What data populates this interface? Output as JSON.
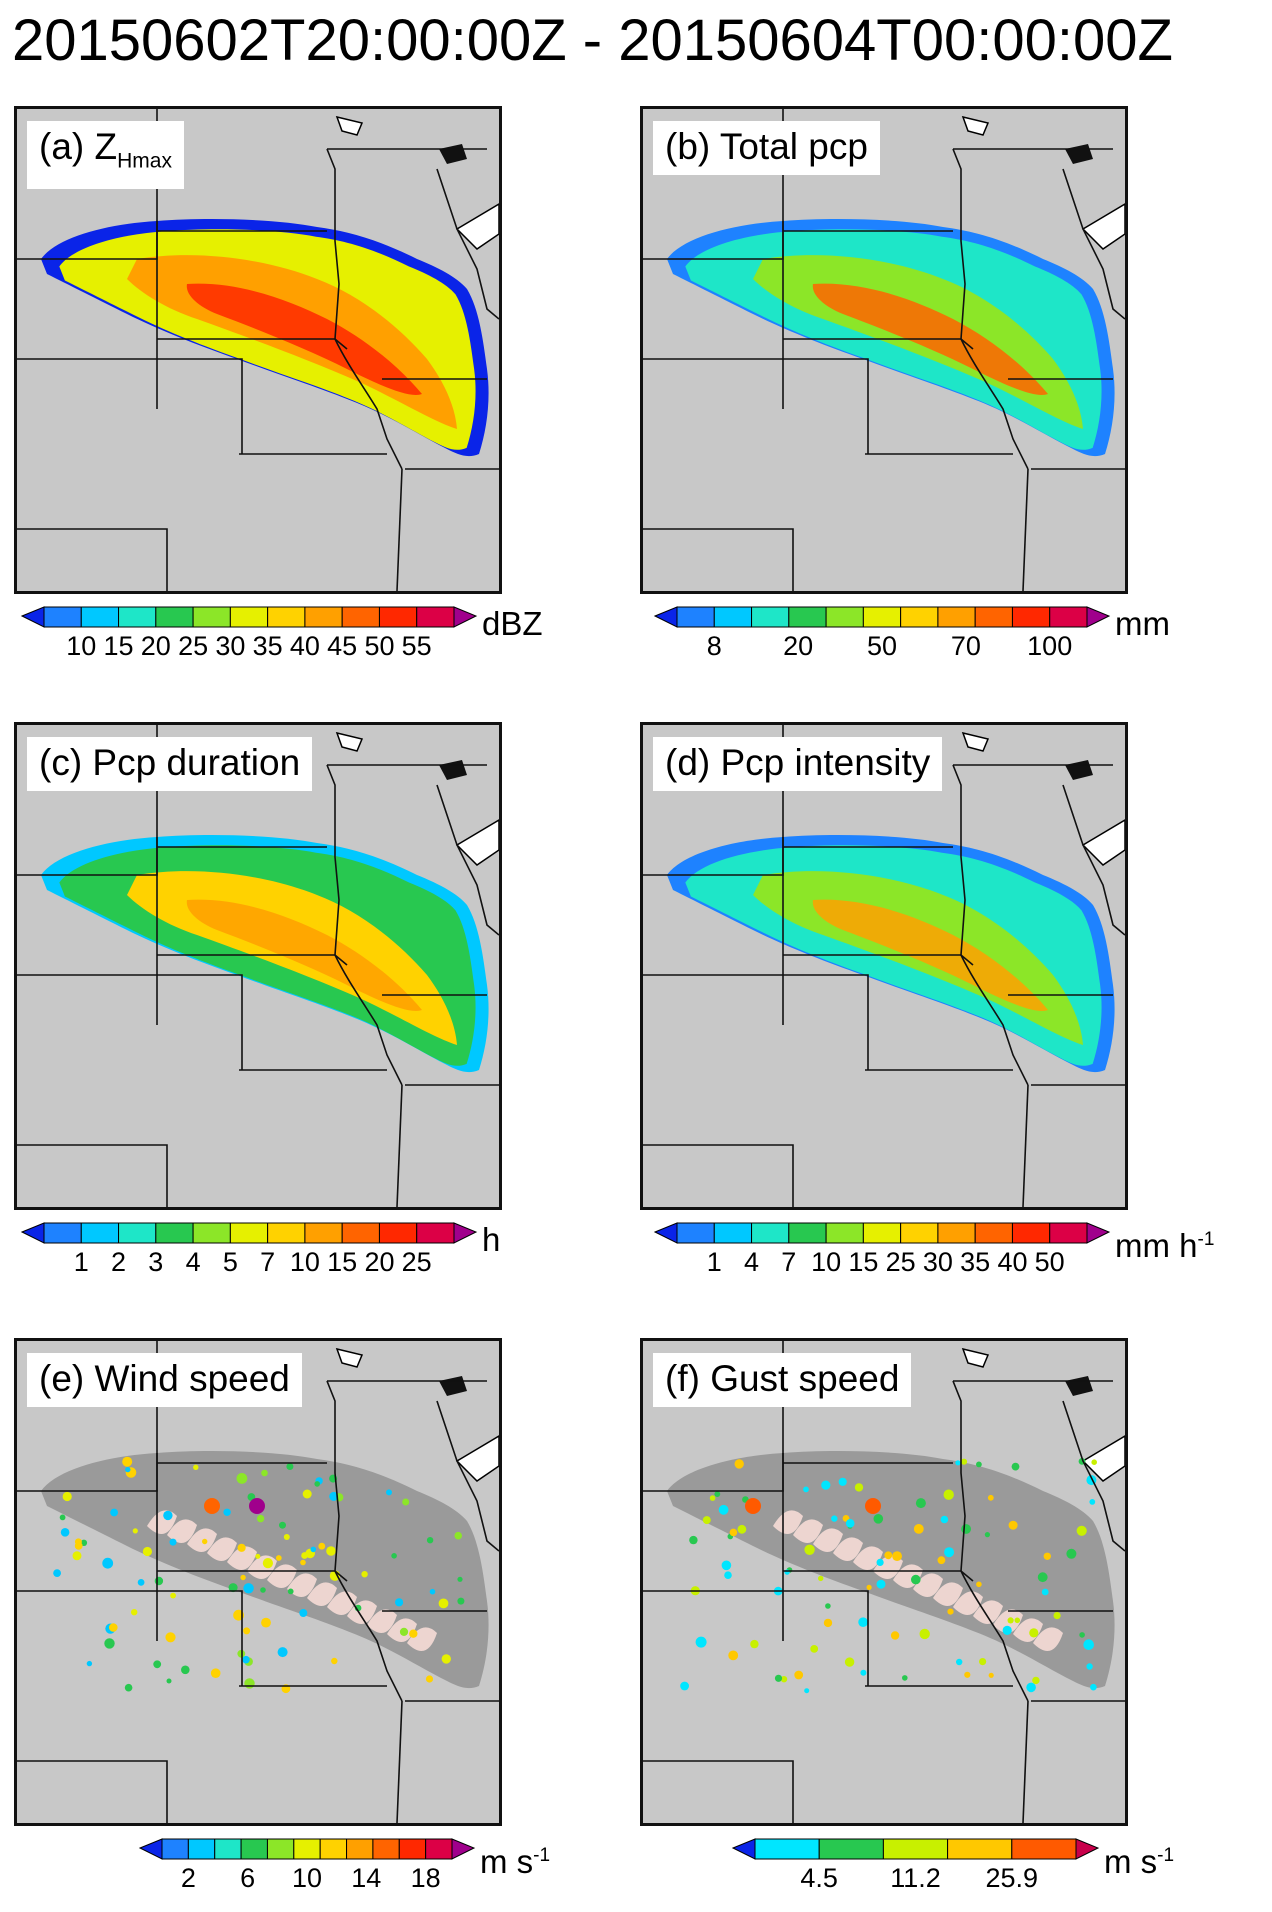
{
  "title": "20150602T20:00:00Z - 20150604T00:00:00Z",
  "colors": {
    "background_map": "#c8c8c8",
    "border_lines": "#111111",
    "water": "#ffffff",
    "storm_footprint_gray": "#9a9a9a",
    "storm_streaks_pink": "#f6dcd6"
  },
  "panels": [
    {
      "id": "a",
      "label_prefix": "(a) Z",
      "label_sub": "Hmax",
      "field": "reflectivity",
      "colorbar": {
        "colors": [
          "#0a24e8",
          "#1e82ff",
          "#00c8ff",
          "#1ee6c8",
          "#28c850",
          "#8ce628",
          "#e6f000",
          "#ffd200",
          "#ffa000",
          "#ff6400",
          "#ff2800",
          "#dc0046",
          "#a0008c"
        ],
        "ticks": [
          "10",
          "15",
          "20",
          "25",
          "30",
          "35",
          "40",
          "45",
          "50",
          "55"
        ],
        "unit": "dBZ",
        "unit_sup": ""
      }
    },
    {
      "id": "b",
      "label_prefix": "(b) Total pcp",
      "label_sub": "",
      "field": "precip",
      "colorbar": {
        "colors": [
          "#0a24e8",
          "#1e82ff",
          "#00c8ff",
          "#1ee6c8",
          "#28c850",
          "#8ce628",
          "#e6f000",
          "#ffd200",
          "#ffa000",
          "#ff6400",
          "#ff2800",
          "#dc0046",
          "#a0008c"
        ],
        "ticks": [
          "8",
          "20",
          "50",
          "70",
          "100"
        ],
        "unit": "mm",
        "unit_sup": ""
      }
    },
    {
      "id": "c",
      "label_prefix": "(c) Pcp duration",
      "label_sub": "",
      "field": "duration",
      "colorbar": {
        "colors": [
          "#0a24e8",
          "#1e82ff",
          "#00c8ff",
          "#1ee6c8",
          "#28c850",
          "#8ce628",
          "#e6f000",
          "#ffd200",
          "#ffa000",
          "#ff6400",
          "#ff2800",
          "#dc0046",
          "#a0008c"
        ],
        "ticks": [
          "1",
          "2",
          "3",
          "4",
          "5",
          "7",
          "10",
          "15",
          "20",
          "25"
        ],
        "unit": "h",
        "unit_sup": ""
      }
    },
    {
      "id": "d",
      "label_prefix": "(d) Pcp intensity",
      "label_sub": "",
      "field": "intensity",
      "colorbar": {
        "colors": [
          "#0a24e8",
          "#1e82ff",
          "#00c8ff",
          "#1ee6c8",
          "#28c850",
          "#8ce628",
          "#e6f000",
          "#ffd200",
          "#ffa000",
          "#ff6400",
          "#ff2800",
          "#dc0046",
          "#a0008c"
        ],
        "ticks": [
          "1",
          "4",
          "7",
          "10",
          "15",
          "25",
          "30",
          "35",
          "40",
          "50"
        ],
        "unit": "mm h",
        "unit_sup": "-1"
      }
    },
    {
      "id": "e",
      "label_prefix": "(e) Wind speed",
      "label_sub": "",
      "field": "wind",
      "colorbar": {
        "colors": [
          "#0a24e8",
          "#1e82ff",
          "#00c8ff",
          "#1ee6c8",
          "#28c850",
          "#8ce628",
          "#e6f000",
          "#ffd200",
          "#ffa000",
          "#ff6400",
          "#ff2800",
          "#dc0046",
          "#a0008c"
        ],
        "ticks": [
          "2",
          "6",
          "10",
          "14",
          "18"
        ],
        "unit": "m s",
        "unit_sup": "-1"
      }
    },
    {
      "id": "f",
      "label_prefix": "(f) Gust speed",
      "label_sub": "",
      "field": "gust",
      "colorbar": {
        "colors": [
          "#0a24e8",
          "#00e6ff",
          "#28c850",
          "#c8f000",
          "#ffc800",
          "#ff5a00",
          "#c8004b"
        ],
        "ticks": [
          "4.5",
          "11.2",
          "25.9"
        ],
        "unit": "m s",
        "unit_sup": "-1"
      }
    }
  ]
}
